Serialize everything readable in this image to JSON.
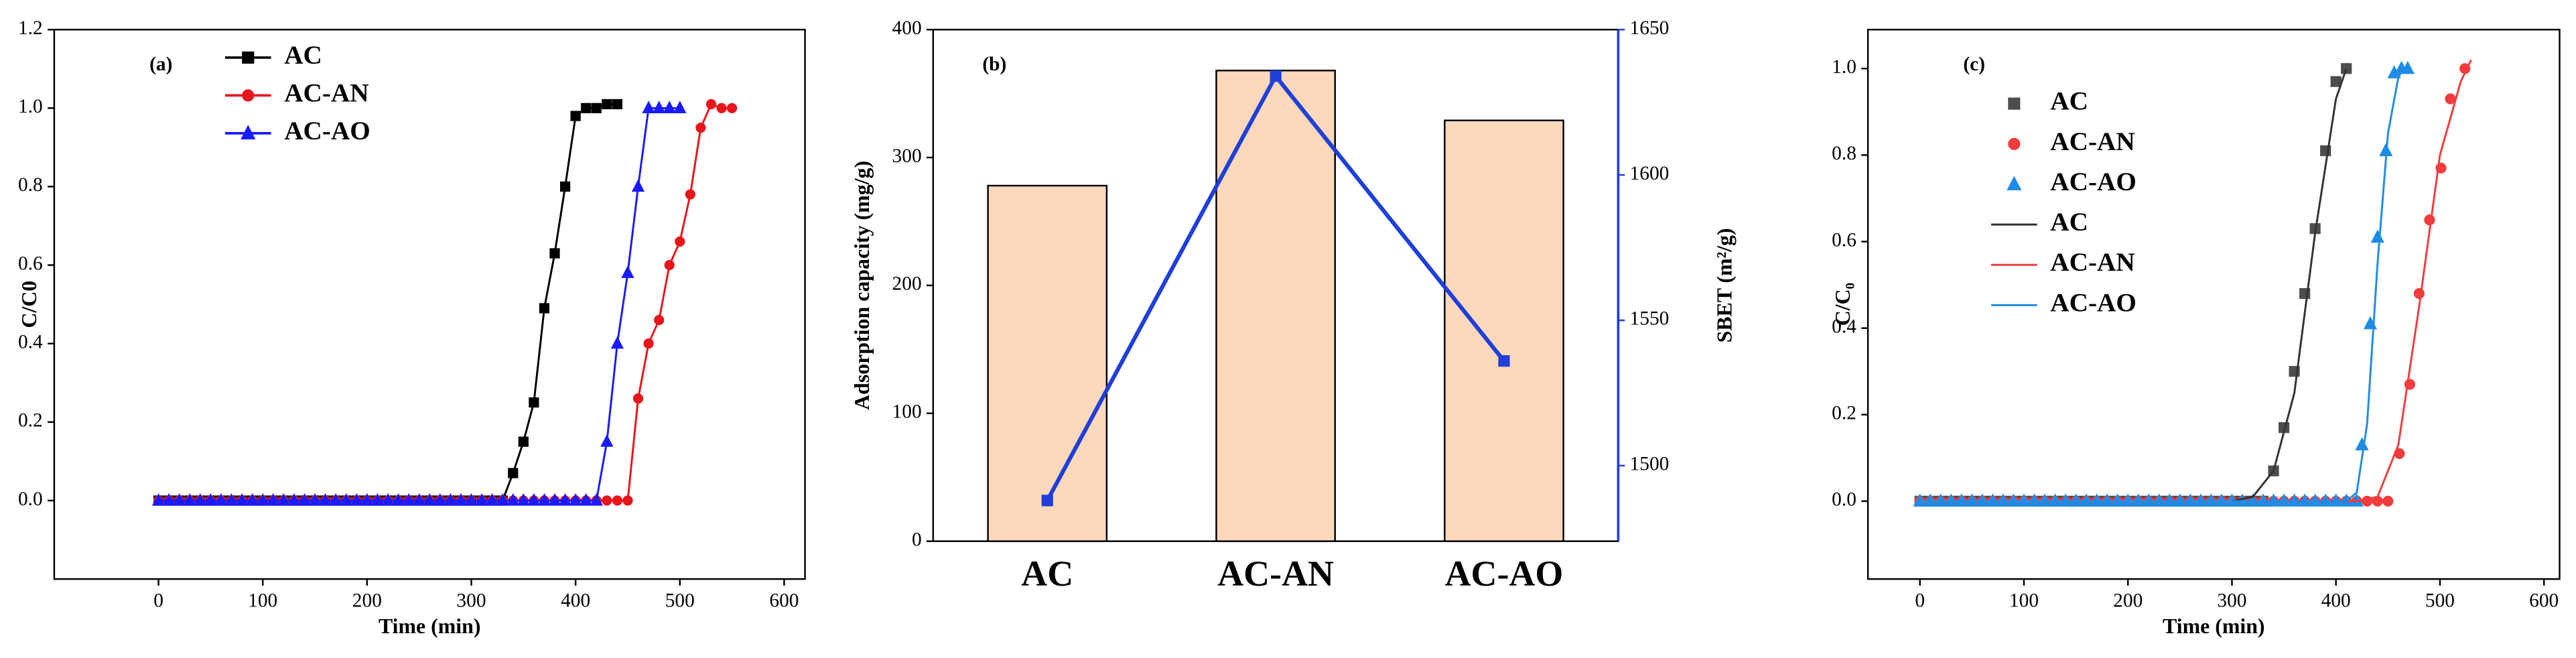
{
  "chart_data": [
    {
      "type": "line",
      "title": "(a)",
      "xlabel": "Time (min)",
      "ylabel": "C/C0",
      "xlim": [
        -100,
        620
      ],
      "xticks": [
        0,
        100,
        200,
        300,
        400,
        500,
        600
      ],
      "ylim": [
        -0.2,
        1.2
      ],
      "yticks": [
        {
          "value": 0,
          "label": "0.0"
        },
        0.2,
        0.4,
        0.6,
        0.8,
        {
          "value": 1,
          "label": "1.0"
        },
        1.2
      ],
      "legend": "upper left",
      "series": [
        {
          "name": "AC",
          "color": "#000000",
          "marker": "square",
          "x": [
            0,
            10,
            20,
            30,
            40,
            50,
            60,
            70,
            80,
            90,
            100,
            110,
            120,
            130,
            140,
            150,
            160,
            170,
            180,
            190,
            200,
            210,
            220,
            230,
            240,
            250,
            260,
            270,
            280,
            290,
            300,
            310,
            320,
            330,
            340,
            350,
            360,
            370,
            380,
            390,
            400,
            410,
            420,
            430,
            440
          ],
          "values": [
            0,
            0,
            0,
            0,
            0,
            0,
            0,
            0,
            0,
            0,
            0,
            0,
            0,
            0,
            0,
            0,
            0,
            0,
            0,
            0,
            0,
            0,
            0,
            0,
            0,
            0,
            0,
            0,
            0,
            0,
            0,
            0,
            0,
            0,
            0.07,
            0.15,
            0.25,
            0.49,
            0.63,
            0.8,
            0.98,
            1.0,
            1.0,
            1.01,
            1.01
          ]
        },
        {
          "name": "AC-AN",
          "color": "#e8151b",
          "marker": "circle",
          "x": [
            0,
            10,
            20,
            30,
            40,
            50,
            60,
            70,
            80,
            90,
            100,
            110,
            120,
            130,
            140,
            150,
            160,
            170,
            180,
            190,
            200,
            210,
            220,
            230,
            240,
            250,
            260,
            270,
            280,
            290,
            300,
            310,
            320,
            330,
            340,
            350,
            360,
            370,
            380,
            390,
            400,
            410,
            420,
            430,
            440,
            450,
            460,
            470,
            480,
            490,
            500,
            510,
            520,
            530,
            540,
            550
          ],
          "values": [
            0,
            0,
            0,
            0,
            0,
            0,
            0,
            0,
            0,
            0,
            0,
            0,
            0,
            0,
            0,
            0,
            0,
            0,
            0,
            0,
            0,
            0,
            0,
            0,
            0,
            0,
            0,
            0,
            0,
            0,
            0,
            0,
            0,
            0,
            0,
            0,
            0,
            0,
            0,
            0,
            0,
            0,
            0,
            0,
            0,
            0,
            0.26,
            0.4,
            0.46,
            0.6,
            0.66,
            0.78,
            0.95,
            1.01,
            1.0,
            1.0
          ]
        },
        {
          "name": "AC-AO",
          "color": "#1a1aff",
          "marker": "triangle",
          "x": [
            0,
            10,
            20,
            30,
            40,
            50,
            60,
            70,
            80,
            90,
            100,
            110,
            120,
            130,
            140,
            150,
            160,
            170,
            180,
            190,
            200,
            210,
            220,
            230,
            240,
            250,
            260,
            270,
            280,
            290,
            300,
            310,
            320,
            330,
            340,
            350,
            360,
            370,
            380,
            390,
            400,
            410,
            420,
            430,
            440,
            450,
            460,
            470,
            480,
            490,
            500
          ],
          "values": [
            0,
            0,
            0,
            0,
            0,
            0,
            0,
            0,
            0,
            0,
            0,
            0,
            0,
            0,
            0,
            0,
            0,
            0,
            0,
            0,
            0,
            0,
            0,
            0,
            0,
            0,
            0,
            0,
            0,
            0,
            0,
            0,
            0,
            0,
            0,
            0,
            0,
            0,
            0,
            0,
            0,
            0,
            0,
            0.15,
            0.4,
            0.58,
            0.8,
            1.0,
            1.0,
            1.0,
            1.0
          ]
        }
      ]
    },
    {
      "type": "bar",
      "title": "(b)",
      "ylabel": "Adsorption capacity (mg/g)",
      "y2label": "SBET (m²/g)",
      "categories": [
        "AC",
        "AC-AN",
        "AC-AO"
      ],
      "ylim": [
        0,
        400
      ],
      "yticks": [
        0,
        100,
        200,
        300,
        400
      ],
      "y2lim": [
        1474,
        1650
      ],
      "y2ticks": [
        1500,
        1550,
        1600,
        1650
      ],
      "y2color": "#1f3fd9",
      "series": [
        {
          "type": "bar",
          "color": "#fcd9bb",
          "values": [
            278,
            368,
            329
          ]
        },
        {
          "type": "line",
          "axis": "y2",
          "color": "#1f3fd9",
          "marker": "square",
          "values": [
            1488,
            1634,
            1536
          ]
        }
      ]
    },
    {
      "type": "scatter",
      "title": "(c)",
      "xlabel": "Time (min)",
      "ylabel": "C/C₀",
      "xlim": [
        -50,
        615
      ],
      "xticks": [
        0,
        100,
        200,
        300,
        400,
        500,
        600
      ],
      "ylim": [
        -0.18,
        1.09
      ],
      "yticks": [
        {
          "value": 0,
          "label": "0.0"
        },
        0.2,
        0.4,
        0.6,
        0.8,
        {
          "value": 1,
          "label": "1.0"
        }
      ],
      "legend": "upper left",
      "series": [
        {
          "name": "AC",
          "type": "scatter",
          "color": "#4d4d4d",
          "marker": "square",
          "x": [
            0,
            10,
            20,
            30,
            40,
            50,
            60,
            70,
            80,
            90,
            100,
            110,
            120,
            130,
            140,
            150,
            160,
            170,
            180,
            190,
            200,
            210,
            220,
            230,
            240,
            250,
            260,
            270,
            280,
            290,
            300,
            310,
            320,
            330,
            340,
            350,
            360,
            370,
            380,
            390,
            400,
            410
          ],
          "values": [
            0,
            0,
            0,
            0,
            0,
            0,
            0,
            0,
            0,
            0,
            0,
            0,
            0,
            0,
            0,
            0,
            0,
            0,
            0,
            0,
            0,
            0,
            0,
            0,
            0,
            0,
            0,
            0,
            0,
            0,
            0,
            0,
            0,
            0,
            0.07,
            0.17,
            0.3,
            0.48,
            0.63,
            0.81,
            0.97,
            1.0
          ]
        },
        {
          "name": "AC-AN",
          "type": "scatter",
          "color": "#f03c3c",
          "marker": "circle",
          "x": [
            0,
            10,
            20,
            30,
            40,
            50,
            60,
            70,
            80,
            90,
            100,
            110,
            120,
            130,
            140,
            150,
            160,
            170,
            180,
            190,
            200,
            210,
            220,
            230,
            240,
            250,
            260,
            270,
            280,
            290,
            300,
            310,
            320,
            330,
            340,
            350,
            360,
            370,
            380,
            390,
            400,
            410,
            420,
            430,
            440,
            450,
            461,
            471,
            480,
            490,
            501,
            510,
            524
          ],
          "values": [
            0,
            0,
            0,
            0,
            0,
            0,
            0,
            0,
            0,
            0,
            0,
            0,
            0,
            0,
            0,
            0,
            0,
            0,
            0,
            0,
            0,
            0,
            0,
            0,
            0,
            0,
            0,
            0,
            0,
            0,
            0,
            0,
            0,
            0,
            0,
            0,
            0,
            0,
            0,
            0,
            0,
            0,
            0,
            0,
            0,
            0,
            0.11,
            0.27,
            0.48,
            0.65,
            0.77,
            0.93,
            1.0
          ]
        },
        {
          "name": "AC-AO",
          "type": "scatter",
          "color": "#1e8ce6",
          "marker": "triangle",
          "x": [
            0,
            10,
            20,
            30,
            40,
            50,
            60,
            70,
            80,
            90,
            100,
            110,
            120,
            130,
            140,
            150,
            160,
            170,
            180,
            190,
            200,
            210,
            220,
            230,
            240,
            250,
            260,
            270,
            280,
            290,
            300,
            310,
            320,
            330,
            340,
            350,
            360,
            370,
            380,
            390,
            400,
            410,
            420,
            425,
            433,
            440,
            448,
            456,
            463,
            469
          ],
          "values": [
            0,
            0,
            0,
            0,
            0,
            0,
            0,
            0,
            0,
            0,
            0,
            0,
            0,
            0,
            0,
            0,
            0,
            0,
            0,
            0,
            0,
            0,
            0,
            0,
            0,
            0,
            0,
            0,
            0,
            0,
            0,
            0,
            0,
            0,
            0,
            0,
            0,
            0,
            0,
            0,
            0,
            0,
            0,
            0.13,
            0.41,
            0.61,
            0.81,
            0.99,
            1.0,
            1.0
          ]
        },
        {
          "name": "AC",
          "type": "line",
          "color": "#333333",
          "x": [
            0,
            300,
            320,
            340,
            360,
            380,
            400,
            410
          ],
          "values": [
            0,
            0,
            0.01,
            0.07,
            0.25,
            0.62,
            0.93,
            1.0
          ]
        },
        {
          "name": "AC-AN",
          "type": "line",
          "color": "#f03c3c",
          "x": [
            0,
            420,
            440,
            460,
            480,
            500,
            520,
            530
          ],
          "values": [
            0,
            0,
            0.01,
            0.13,
            0.45,
            0.8,
            0.97,
            1.02
          ]
        },
        {
          "name": "AC-AO",
          "type": "line",
          "color": "#1e8ce6",
          "x": [
            0,
            410,
            420,
            430,
            440,
            450,
            460,
            465
          ],
          "values": [
            0,
            0,
            0.02,
            0.18,
            0.55,
            0.85,
            0.98,
            1.0
          ]
        }
      ]
    }
  ]
}
